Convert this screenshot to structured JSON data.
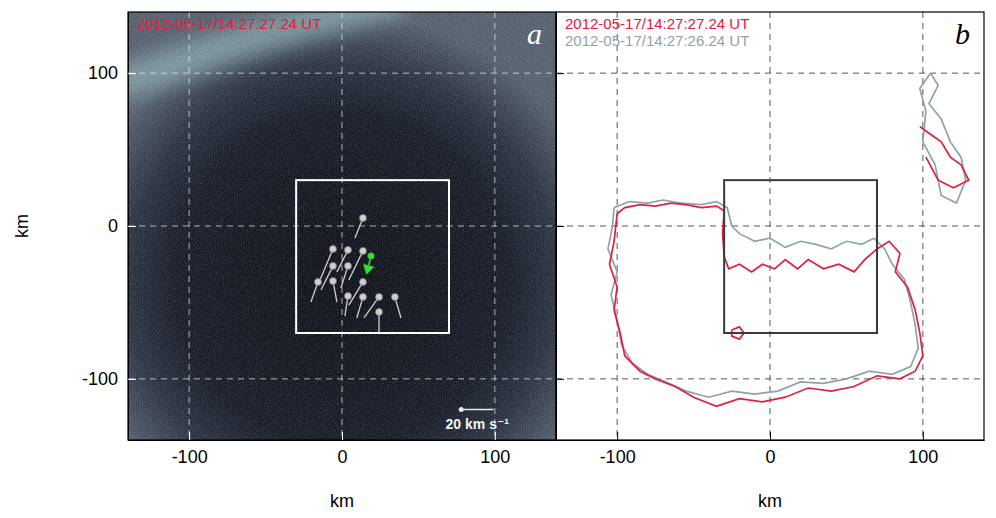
{
  "chart_data": [
    {
      "type": "image",
      "title": "2012-05-17/14:27:27.24 UT",
      "panel_label": "a",
      "xlabel": "km",
      "ylabel": "km",
      "xlim": [
        -140,
        140
      ],
      "ylim": [
        -140,
        140
      ],
      "xticks": [
        -100,
        0,
        100
      ],
      "yticks": [
        -100,
        0,
        100
      ],
      "grid": true,
      "box": {
        "x": [
          -30,
          70
        ],
        "y": [
          -70,
          30
        ]
      },
      "vectors": {
        "color": "#d0d0d0",
        "marker": "circle",
        "x": [
          13.7,
          -5.9,
          13.7,
          3.9,
          -5.9,
          -5.9,
          3.9,
          13.7,
          13.7,
          24.2,
          24.2,
          34.6,
          -15.7,
          3.9
        ],
        "y": [
          5.2,
          -15.0,
          -16.3,
          -26.1,
          -26.1,
          -36.0,
          -45.8,
          -36.6,
          -46.4,
          -46.4,
          -56.2,
          -46.4,
          -36.6,
          -15.7
        ],
        "vx": [
          -5.0,
          -9.4,
          -8.8,
          -4.4,
          -7.5,
          2.5,
          -1.9,
          -8.8,
          -3.8,
          -9.4,
          0.0,
          3.8,
          -4.4,
          -6.9
        ],
        "vy": [
          -12.5,
          -22.5,
          -18.1,
          -13.8,
          -15.0,
          -13.1,
          -12.5,
          -14.4,
          -13.1,
          -13.1,
          -12.5,
          -13.1,
          -12.5,
          -13.8
        ]
      },
      "highlight": {
        "color": "#3ddc3d",
        "marker": "arrow",
        "x": 19.0,
        "y": -19.6,
        "vx": -2.5,
        "vy": -10.0
      },
      "scale_bar": {
        "speed": 20,
        "length_km": 21,
        "label": "20 km s⁻¹"
      }
    },
    {
      "type": "contour",
      "panel_label": "b",
      "xlabel": "km",
      "xlim": [
        -140,
        140
      ],
      "ylim": [
        -140,
        140
      ],
      "xticks": [
        -100,
        0,
        100
      ],
      "yticks": [
        -100,
        0,
        100
      ],
      "grid": true,
      "tick_labels": "x",
      "legend": "upper left",
      "box": {
        "x": [
          -30,
          70
        ],
        "y": [
          -70,
          30
        ]
      },
      "series": [
        {
          "name": "2012-05-17/14:27:27.24 UT",
          "color": "#e0203c",
          "x": [
            -100,
            -95,
            -85,
            -75,
            -65,
            -55,
            -45,
            -35,
            -30,
            -31,
            -30,
            -27,
            -20,
            -12,
            -5,
            3,
            10,
            18,
            25,
            35,
            45,
            55,
            62,
            70,
            78,
            85,
            82,
            90,
            95,
            98,
            100,
            95,
            85,
            70,
            55,
            40,
            25,
            10,
            -5,
            -20,
            -35,
            -50,
            -62,
            -75,
            -85,
            -95,
            -98,
            -102,
            -100,
            -105,
            -102,
            -100,
            null,
            98,
            105,
            112,
            118,
            125,
            130,
            120,
            110,
            102,
            null,
            -25,
            -20,
            -17,
            -20,
            -25,
            -25
          ],
          "y": [
            8,
            12,
            14,
            13,
            15,
            14,
            12,
            13,
            10,
            -5,
            -20,
            -28,
            -25,
            -30,
            -25,
            -28,
            -22,
            -28,
            -22,
            -28,
            -25,
            -30,
            -22,
            -15,
            -10,
            -18,
            -30,
            -40,
            -55,
            -70,
            -85,
            -95,
            -100,
            -98,
            -105,
            -108,
            -106,
            -112,
            -115,
            -113,
            -118,
            -112,
            -105,
            -100,
            -95,
            -85,
            -70,
            -55,
            -40,
            -25,
            -10,
            8,
            null,
            65,
            60,
            55,
            45,
            40,
            30,
            25,
            30,
            45,
            null,
            -68,
            -66,
            -70,
            -74,
            -72,
            -68
          ]
        },
        {
          "name": "2012-05-17/14:27:26.24 UT",
          "color": "#8fa3ad",
          "x": [
            -102,
            -92,
            -80,
            -70,
            -58,
            -45,
            -35,
            -28,
            -25,
            -20,
            -10,
            0,
            10,
            20,
            30,
            40,
            50,
            60,
            68,
            75,
            80,
            88,
            92,
            95,
            97,
            92,
            80,
            65,
            50,
            35,
            20,
            5,
            -10,
            -25,
            -40,
            -55,
            -68,
            -80,
            -90,
            -97,
            -100,
            -104,
            -100,
            -106,
            -103,
            -102,
            null,
            105,
            110,
            104,
            112,
            118,
            125,
            128,
            122,
            112,
            108,
            100,
            102,
            98,
            105
          ],
          "y": [
            12,
            16,
            15,
            17,
            15,
            14,
            16,
            12,
            0,
            -5,
            -10,
            -8,
            -14,
            -10,
            -12,
            -15,
            -10,
            -12,
            -8,
            -15,
            -25,
            -35,
            -50,
            -65,
            -80,
            -92,
            -97,
            -95,
            -100,
            -103,
            -102,
            -108,
            -110,
            -108,
            -112,
            -108,
            -102,
            -97,
            -90,
            -78,
            -62,
            -45,
            -30,
            -15,
            0,
            12,
            null,
            100,
            92,
            80,
            70,
            55,
            45,
            30,
            15,
            20,
            40,
            55,
            75,
            90,
            100
          ]
        }
      ]
    }
  ]
}
